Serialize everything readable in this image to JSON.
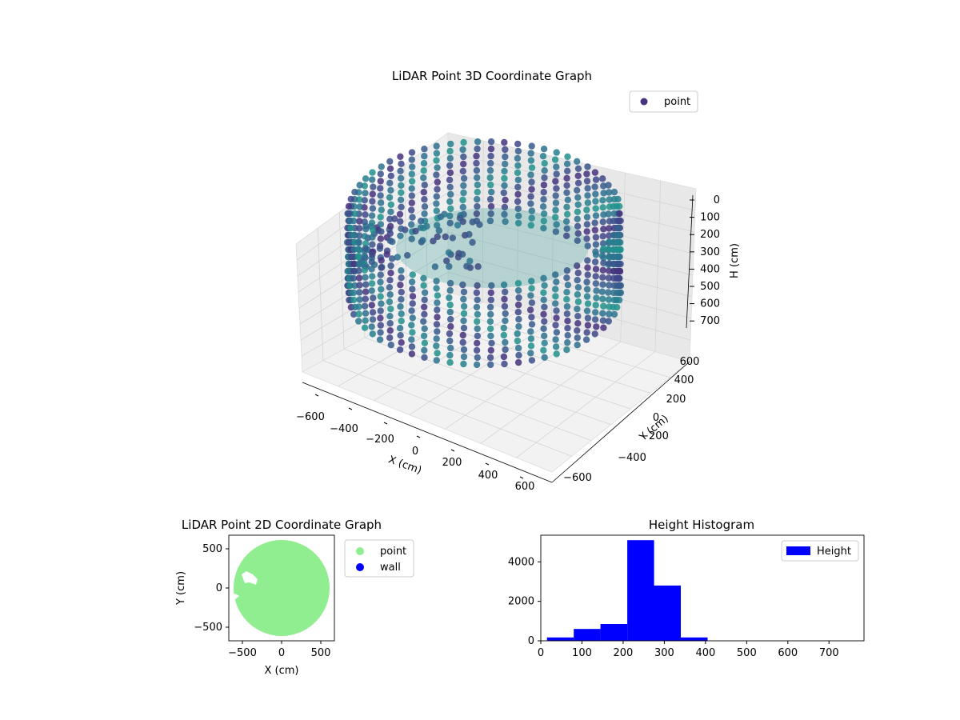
{
  "chart_data": [
    {
      "type": "scatter3d",
      "title": "LiDAR Point 3D Coordinate Graph",
      "xlabel": "X (cm)",
      "ylabel": "Y (cm)",
      "zlabel": "H (cm)",
      "x_ticks": [
        "−600",
        "−400",
        "−200",
        "0",
        "200",
        "400",
        "600"
      ],
      "y_ticks": [
        "600",
        "400",
        "200",
        "0",
        "−200",
        "−400",
        "−600"
      ],
      "z_ticks": [
        "0",
        "100",
        "200",
        "300",
        "400",
        "500",
        "600",
        "700"
      ],
      "legend": {
        "label": "point",
        "color": "#46327e",
        "placement": "top-right"
      },
      "colormap": "viridis",
      "grid": true,
      "description_shape": "ring of points around radius ~600 cm, heights ~200–350 cm"
    },
    {
      "type": "scatter",
      "title": "LiDAR Point 2D Coordinate Graph",
      "xlabel": "X (cm)",
      "ylabel": "Y (cm)",
      "x_ticks": [
        "−500",
        "0",
        "500"
      ],
      "y_ticks": [
        "500",
        "0",
        "−500"
      ],
      "xlim": [
        -680,
        680
      ],
      "ylim": [
        -680,
        680
      ],
      "series": [
        {
          "name": "point",
          "color": "#90ee90"
        },
        {
          "name": "wall",
          "color": "#0000ff"
        }
      ],
      "legend_placement": "outside-right"
    },
    {
      "type": "bar",
      "title": "Height Histogram",
      "x_ticks": [
        "0",
        "100",
        "200",
        "300",
        "400",
        "500",
        "600",
        "700"
      ],
      "y_ticks": [
        "0",
        "2000",
        "4000"
      ],
      "xlim": [
        0,
        785
      ],
      "ylim": [
        0,
        5350
      ],
      "bin_edges": [
        15,
        80,
        145,
        210,
        275,
        340,
        405,
        470,
        535,
        600,
        665,
        730,
        780
      ],
      "values": [
        170,
        600,
        850,
        5100,
        2800,
        170,
        0,
        0,
        0,
        0,
        0,
        0
      ],
      "series": [
        {
          "name": "Height",
          "color": "#0000ff"
        }
      ],
      "legend_placement": "upper right"
    }
  ]
}
